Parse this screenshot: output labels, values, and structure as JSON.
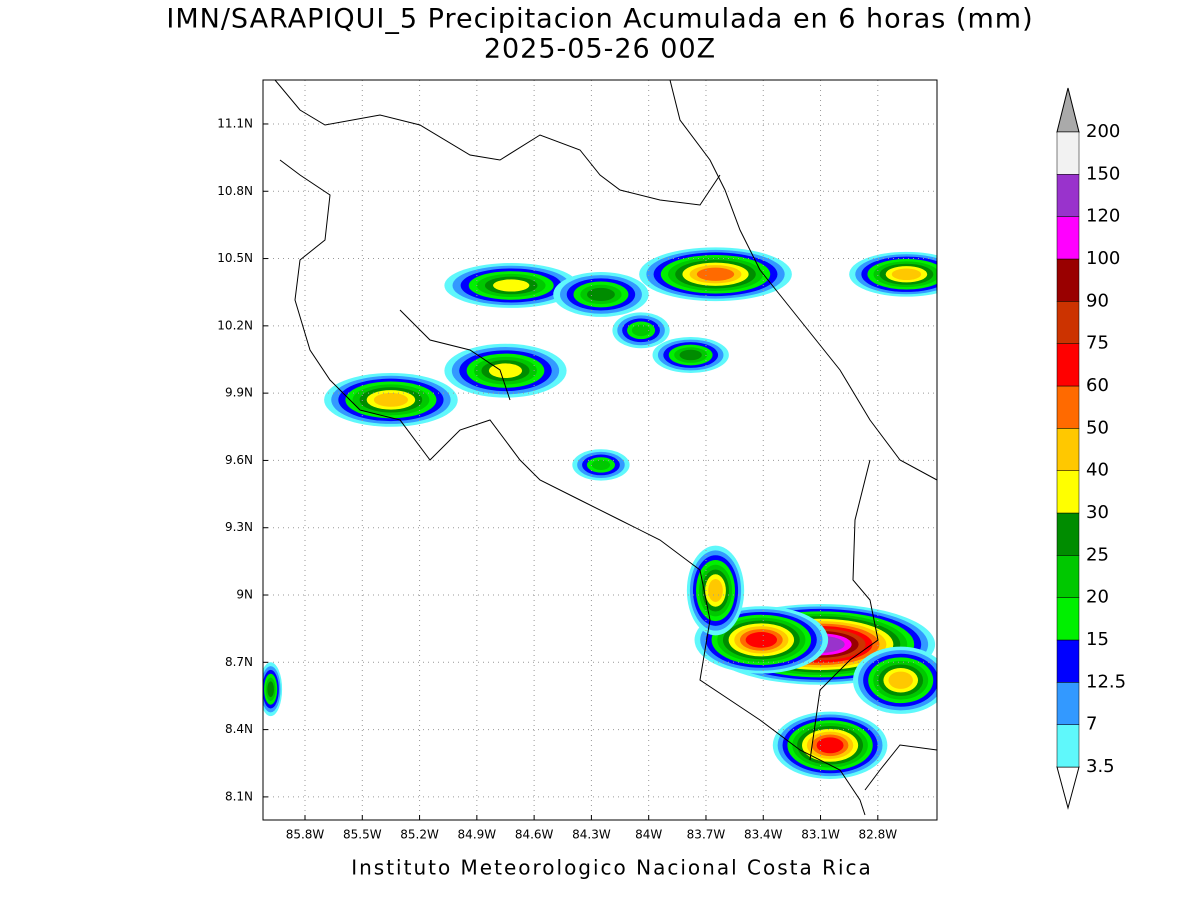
{
  "chart_data": {
    "type": "precip-map",
    "title": "IMN/SARAPIQUI_5 Precipitacion Acumulada en 6 horas (mm)",
    "subtitle": "2025-05-26 00Z",
    "footer": "Instituto Meteorologico Nacional Costa Rica",
    "xlim": [
      -86.02,
      -82.49
    ],
    "ylim": [
      7.997,
      11.296
    ],
    "xticks": [
      {
        "value": -85.8,
        "label": "85.8W"
      },
      {
        "value": -85.5,
        "label": "85.5W"
      },
      {
        "value": -85.2,
        "label": "85.2W"
      },
      {
        "value": -84.9,
        "label": "84.9W"
      },
      {
        "value": -84.6,
        "label": "84.6W"
      },
      {
        "value": -84.3,
        "label": "84.3W"
      },
      {
        "value": -84,
        "label": "84W"
      },
      {
        "value": -83.7,
        "label": "83.7W"
      },
      {
        "value": -83.4,
        "label": "83.4W"
      },
      {
        "value": -83.1,
        "label": "83.1W"
      },
      {
        "value": -82.8,
        "label": "82.8W"
      }
    ],
    "yticks": [
      {
        "value": 8.1,
        "label": "8.1N"
      },
      {
        "value": 8.4,
        "label": "8.4N"
      },
      {
        "value": 8.7,
        "label": "8.7N"
      },
      {
        "value": 9,
        "label": "9N"
      },
      {
        "value": 9.3,
        "label": "9.3N"
      },
      {
        "value": 9.6,
        "label": "9.6N"
      },
      {
        "value": 9.9,
        "label": "9.9N"
      },
      {
        "value": 10.2,
        "label": "10.2N"
      },
      {
        "value": 10.5,
        "label": "10.5N"
      },
      {
        "value": 10.8,
        "label": "10.8N"
      },
      {
        "value": 11.1,
        "label": "11.1N"
      }
    ],
    "grid": true,
    "levels": [
      3.5,
      7,
      12.5,
      15,
      20,
      25,
      30,
      40,
      50,
      60,
      75,
      90,
      100,
      120,
      150,
      200
    ],
    "colors": [
      "#5ff8fb",
      "#3399ff",
      "#0000ff",
      "#00f000",
      "#00c800",
      "#008c00",
      "#ffff00",
      "#ffc800",
      "#ff6a00",
      "#ff0000",
      "#cc3300",
      "#990000",
      "#ff00ff",
      "#9933cc",
      "#f2f2f2"
    ],
    "over_color": "#aaaaaa",
    "under_color": "#ffffff",
    "cells": [
      {
        "lon": -85.35,
        "lat": 9.87,
        "peak": 45,
        "rx": 0.35,
        "ry": 0.12
      },
      {
        "lon": -84.75,
        "lat": 10.0,
        "peak": 35,
        "rx": 0.32,
        "ry": 0.12
      },
      {
        "lon": -84.72,
        "lat": 10.38,
        "peak": 35,
        "rx": 0.35,
        "ry": 0.1
      },
      {
        "lon": -84.25,
        "lat": 10.34,
        "peak": 25,
        "rx": 0.25,
        "ry": 0.1
      },
      {
        "lon": -83.65,
        "lat": 10.43,
        "peak": 55,
        "rx": 0.4,
        "ry": 0.12
      },
      {
        "lon": -82.65,
        "lat": 10.43,
        "peak": 40,
        "rx": 0.3,
        "ry": 0.1
      },
      {
        "lon": -84.04,
        "lat": 10.18,
        "peak": 20,
        "rx": 0.15,
        "ry": 0.08
      },
      {
        "lon": -83.78,
        "lat": 10.07,
        "peak": 25,
        "rx": 0.2,
        "ry": 0.08
      },
      {
        "lon": -83.1,
        "lat": 8.78,
        "peak": 120,
        "rx": 0.6,
        "ry": 0.18
      },
      {
        "lon": -83.41,
        "lat": 8.8,
        "peak": 60,
        "rx": 0.35,
        "ry": 0.15
      },
      {
        "lon": -82.68,
        "lat": 8.62,
        "peak": 40,
        "rx": 0.25,
        "ry": 0.15
      },
      {
        "lon": -83.05,
        "lat": 8.33,
        "peak": 60,
        "rx": 0.3,
        "ry": 0.15
      },
      {
        "lon": -83.65,
        "lat": 9.02,
        "peak": 40,
        "rx": 0.15,
        "ry": 0.2
      },
      {
        "lon": -84.25,
        "lat": 9.58,
        "peak": 20,
        "rx": 0.15,
        "ry": 0.07
      },
      {
        "lon": -85.98,
        "lat": 8.58,
        "peak": 25,
        "rx": 0.06,
        "ry": 0.12
      }
    ]
  }
}
